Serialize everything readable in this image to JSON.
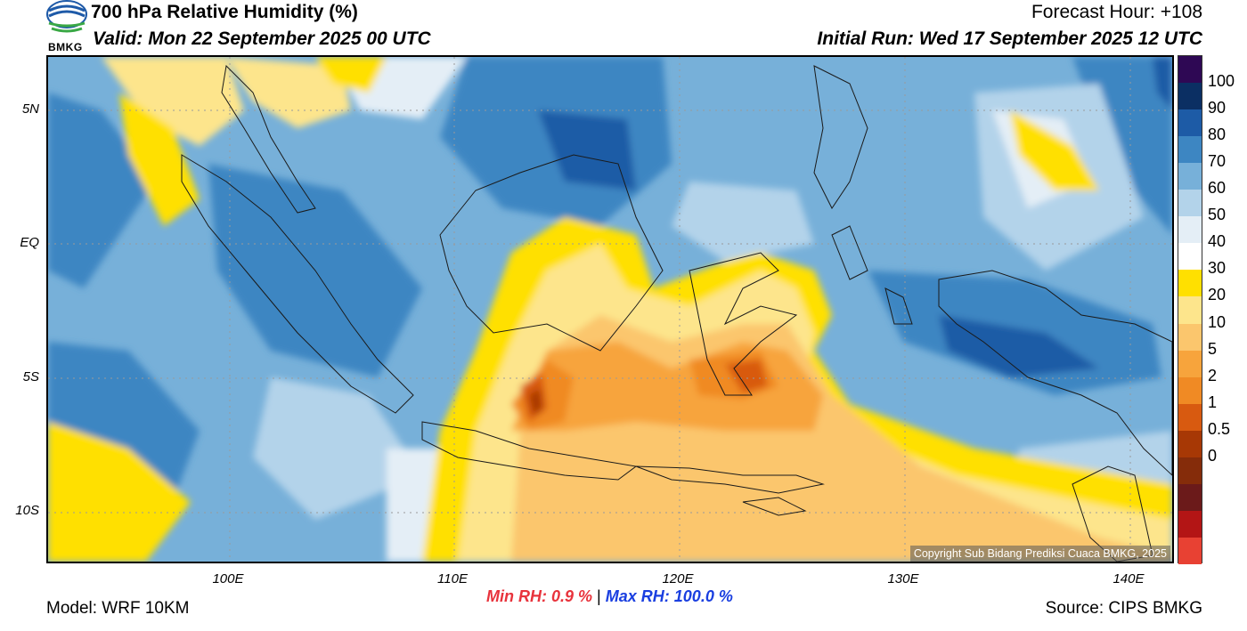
{
  "header": {
    "title": "700 hPa Relative Humidity (%)",
    "valid": "Valid: Mon 22 September 2025 00 UTC",
    "forecast_hour": "Forecast Hour: +108",
    "initial_run": "Initial Run: Wed 17 September 2025 12 UTC",
    "logo_text": "BMKG"
  },
  "axes": {
    "lat_labels": [
      "5N",
      "EQ",
      "5S",
      "10S"
    ],
    "lon_labels": [
      "100E",
      "110E",
      "120E",
      "130E",
      "140E"
    ]
  },
  "colorbar": {
    "ticks": [
      "100",
      "90",
      "80",
      "70",
      "60",
      "50",
      "40",
      "30",
      "20",
      "10",
      "5",
      "2",
      "1",
      "0.5",
      "0"
    ],
    "colors": [
      "#2e0854",
      "#0b2f63",
      "#1d5ba6",
      "#3d86c2",
      "#77b0d9",
      "#b3d3ea",
      "#e4eef6",
      "#ffffff",
      "#ffe000",
      "#fde58c",
      "#fbc66d",
      "#f7a43c",
      "#f08a24",
      "#d85a10",
      "#a73805",
      "#852c0a",
      "#6b1a1a",
      "#b31515",
      "#e84133"
    ]
  },
  "stats": {
    "min_label": "Min RH:",
    "min_value": "0.9 %",
    "separator": "|",
    "max_label": "Max RH:",
    "max_value": "100.0 %"
  },
  "footer": {
    "model": "Model: WRF 10KM",
    "source": "Source: CIPS BMKG",
    "copyright": "Copyright Sub Bidang Prediksi Cuaca BMKG, 2025"
  }
}
